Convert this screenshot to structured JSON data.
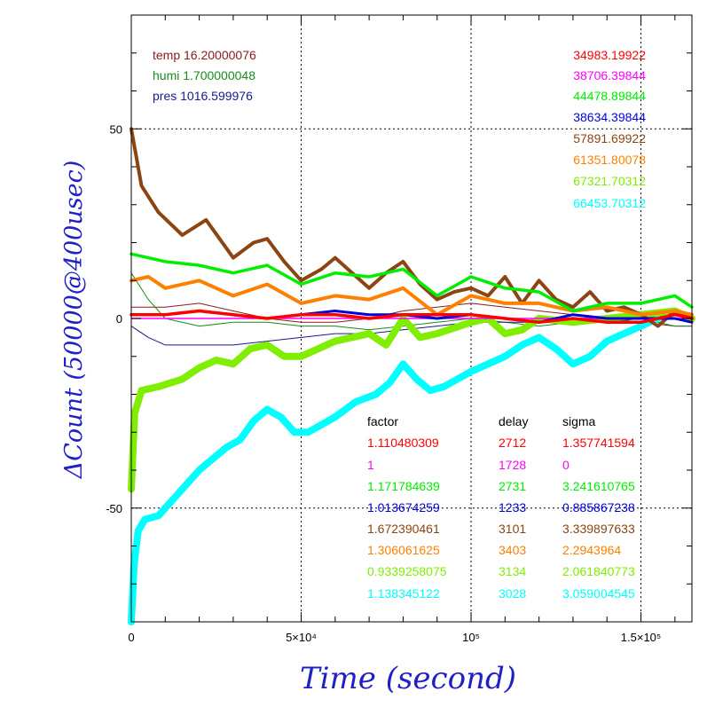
{
  "chart_data": {
    "type": "line",
    "xlabel": "Time (second)",
    "ylabel": "ΔCount (50000@400usec)",
    "xlim": [
      0,
      165000
    ],
    "ylim": [
      -80,
      80
    ],
    "grid": true,
    "x_ticks": [
      {
        "value": 0,
        "label": "0"
      },
      {
        "value": 50000,
        "label": "5×10⁴"
      },
      {
        "value": 100000,
        "label": "10⁵"
      },
      {
        "value": 150000,
        "label": "1.5×10⁵"
      }
    ],
    "y_ticks": [
      {
        "value": -50,
        "label": "-50"
      },
      {
        "value": 0,
        "label": "0"
      },
      {
        "value": 50,
        "label": "50"
      }
    ],
    "environment": [
      {
        "label": "temp 16.20000076",
        "color": "#8b1a1a"
      },
      {
        "label": "humi 1.700000048",
        "color": "#1a8b1a"
      },
      {
        "label": "pres 1016.599976",
        "color": "#1a1a8b"
      }
    ],
    "table_headers": {
      "factor": "factor",
      "delay": "delay",
      "sigma": "sigma"
    },
    "series": [
      {
        "value_label": "34983.19922",
        "factor": "1.110480309",
        "delay": "2712",
        "sigma": "1.357741594",
        "color": "#ff0000",
        "width": 3.5,
        "x": [
          0,
          10000,
          20000,
          30000,
          40000,
          50000,
          60000,
          70000,
          80000,
          90000,
          100000,
          110000,
          120000,
          130000,
          140000,
          150000,
          160000,
          165000
        ],
        "y": [
          1,
          1,
          2,
          1,
          0,
          1,
          1,
          0,
          1,
          1,
          1,
          0,
          -1,
          0,
          -1,
          -1,
          1,
          0
        ]
      },
      {
        "value_label": "38706.39844",
        "factor": "1",
        "delay": "1728",
        "sigma": "0",
        "color": "#ff00ff",
        "width": 1.5,
        "x": [
          0,
          165000
        ],
        "y": [
          0,
          0
        ]
      },
      {
        "value_label": "44478.89844",
        "factor": "1.171784639",
        "delay": "2731",
        "sigma": "3.241610765",
        "color": "#00ee00",
        "width": 3.5,
        "x": [
          0,
          5000,
          10000,
          20000,
          30000,
          40000,
          50000,
          60000,
          70000,
          80000,
          90000,
          100000,
          110000,
          120000,
          130000,
          140000,
          150000,
          160000,
          165000
        ],
        "y": [
          17,
          16,
          15,
          14,
          12,
          14,
          9,
          12,
          11,
          13,
          6,
          11,
          8,
          7,
          2,
          4,
          4,
          6,
          3
        ]
      },
      {
        "value_label": "38634.39844",
        "factor": "1.013674259",
        "delay": "1233",
        "sigma": "0.885867238",
        "color": "#0000dd",
        "width": 3,
        "x": [
          0,
          10000,
          20000,
          30000,
          40000,
          50000,
          60000,
          70000,
          80000,
          90000,
          100000,
          110000,
          120000,
          130000,
          140000,
          150000,
          160000,
          165000
        ],
        "y": [
          1,
          1,
          2,
          1,
          0,
          1,
          2,
          1,
          1,
          0,
          1,
          0,
          -1,
          1,
          0,
          0,
          0,
          -1
        ]
      },
      {
        "value_label": "57891.69922",
        "factor": "1.672390461",
        "delay": "3101",
        "sigma": "3.339897633",
        "color": "#8b4513",
        "width": 4,
        "x": [
          0,
          3000,
          8000,
          15000,
          22000,
          30000,
          36000,
          40000,
          45000,
          50000,
          56000,
          60000,
          65000,
          70000,
          75000,
          80000,
          85000,
          90000,
          95000,
          100000,
          105000,
          110000,
          115000,
          120000,
          125000,
          130000,
          135000,
          140000,
          145000,
          150000,
          155000,
          160000,
          165000
        ],
        "y": [
          50,
          35,
          28,
          22,
          26,
          16,
          20,
          21,
          15,
          10,
          13,
          16,
          12,
          8,
          12,
          15,
          9,
          5,
          7,
          8,
          6,
          11,
          4,
          10,
          5,
          3,
          7,
          2,
          3,
          1,
          -2,
          2,
          0
        ]
      },
      {
        "value_label": "61351.80078",
        "factor": "1.306061625",
        "delay": "3403",
        "sigma": "2.2943964",
        "color": "#ff8000",
        "width": 4,
        "x": [
          0,
          5000,
          10000,
          20000,
          30000,
          40000,
          50000,
          60000,
          70000,
          80000,
          90000,
          100000,
          110000,
          120000,
          130000,
          140000,
          150000,
          160000,
          165000
        ],
        "y": [
          10,
          11,
          8,
          10,
          6,
          9,
          4,
          6,
          5,
          8,
          1,
          6,
          4,
          4,
          2,
          3,
          1,
          2,
          1
        ]
      },
      {
        "value_label": "67321.70312",
        "factor": "0.9339258075",
        "delay": "3134",
        "sigma": "2.061840773",
        "color": "#80ee00",
        "width": 8,
        "x": [
          0,
          1000,
          3000,
          8000,
          15000,
          20000,
          25000,
          30000,
          35000,
          40000,
          45000,
          50000,
          60000,
          70000,
          75000,
          80000,
          85000,
          90000,
          100000,
          105000,
          110000,
          115000,
          120000,
          130000,
          140000,
          150000,
          160000,
          165000
        ],
        "y": [
          -45,
          -25,
          -19,
          -18,
          -16,
          -13,
          -11,
          -12,
          -8,
          -7,
          -10,
          -10,
          -6,
          -4,
          -7,
          0,
          -5,
          -4,
          -1,
          0,
          -4,
          -3,
          0,
          -1,
          0,
          1,
          2,
          0
        ]
      },
      {
        "value_label": "66453.70312",
        "factor": "1.138345122",
        "delay": "3028",
        "sigma": "3.059004545",
        "color": "#00ffff",
        "width": 8,
        "x": [
          0,
          800,
          2000,
          4000,
          8000,
          12000,
          16000,
          20000,
          24000,
          28000,
          32000,
          36000,
          40000,
          44000,
          48000,
          52000,
          56000,
          60000,
          66000,
          72000,
          76000,
          80000,
          84000,
          88000,
          92000,
          96000,
          100000,
          105000,
          110000,
          115000,
          120000,
          125000,
          130000,
          135000,
          140000,
          145000,
          150000,
          155000
        ],
        "y": [
          -80,
          -65,
          -56,
          -53,
          -52,
          -48,
          -44,
          -40,
          -37,
          -34,
          -32,
          -27,
          -24,
          -26,
          -30,
          -30,
          -28,
          -26,
          -22,
          -20,
          -17,
          -12,
          -16,
          -19,
          -18,
          -16,
          -14,
          -12,
          -10,
          -7,
          -5,
          -8,
          -12,
          -10,
          -6,
          -4,
          -2,
          0
        ]
      }
    ],
    "environment_lines": [
      {
        "color": "#8b1a1a",
        "x": [
          0,
          10000,
          20000,
          30000,
          40000,
          50000,
          60000,
          70000,
          80000,
          90000,
          100000,
          110000,
          120000,
          130000,
          140000,
          150000,
          160000,
          165000
        ],
        "y": [
          3,
          3,
          4,
          2,
          0,
          -1,
          -1,
          0,
          2,
          3,
          4,
          3,
          2,
          1,
          0,
          -1,
          -2,
          -2
        ]
      },
      {
        "color": "#1a8b1a",
        "x": [
          0,
          5000,
          10000,
          20000,
          30000,
          40000,
          50000,
          60000,
          70000,
          80000,
          90000,
          100000,
          110000,
          120000,
          130000,
          140000,
          150000,
          160000,
          165000
        ],
        "y": [
          12,
          5,
          0,
          -2,
          -1,
          -1,
          -2,
          -2,
          -3,
          -2,
          -1,
          0,
          -1,
          -2,
          -1,
          -1,
          0,
          -2,
          -2
        ]
      },
      {
        "color": "#1a1a8b",
        "x": [
          0,
          5000,
          10000,
          20000,
          30000,
          40000,
          50000,
          60000,
          70000,
          80000,
          90000,
          100000,
          110000,
          120000,
          130000,
          140000,
          150000,
          160000,
          165000
        ],
        "y": [
          -2,
          -5,
          -7,
          -7,
          -7,
          -6,
          -5,
          -4,
          -4,
          -3,
          -2,
          -1,
          -1,
          -1,
          0,
          0,
          0,
          1,
          0
        ]
      }
    ]
  }
}
